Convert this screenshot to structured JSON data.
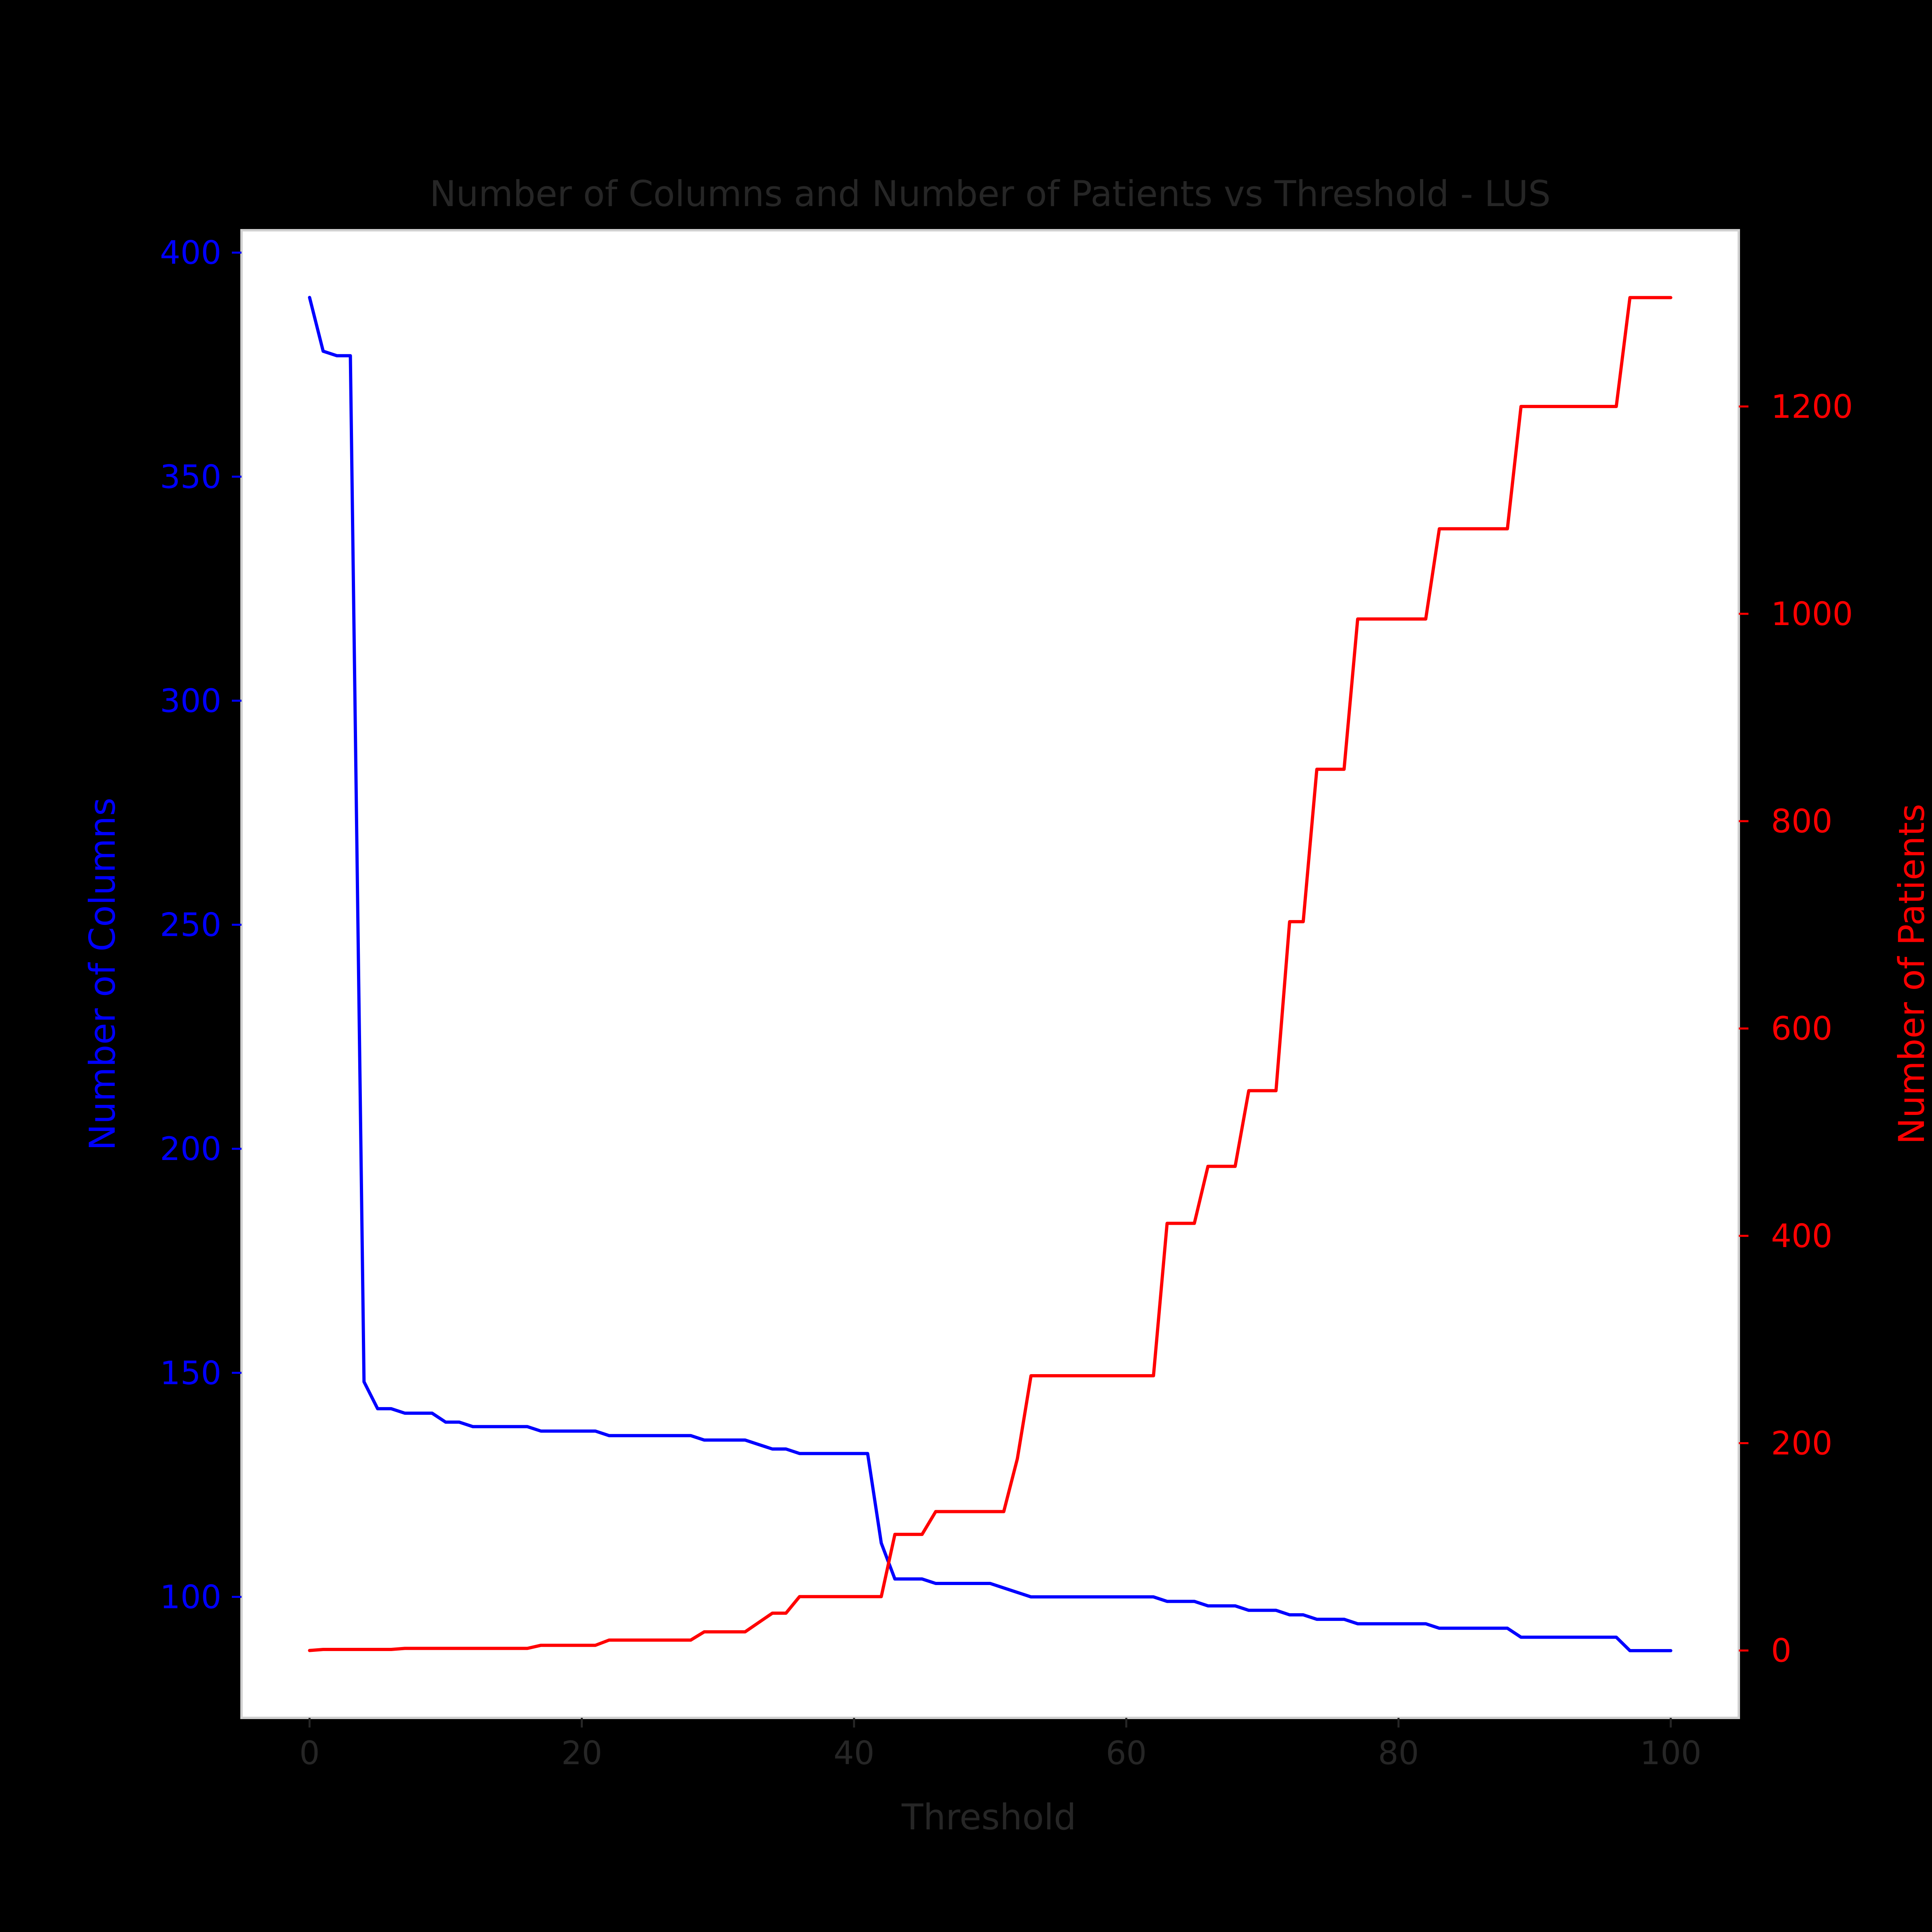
{
  "colors": {
    "background": "#000000",
    "plot_background": "#ffffff",
    "frame": "#d0d0d0",
    "text": "#262626",
    "columns": "#0000ff",
    "patients": "#ff0000"
  },
  "chart_data": {
    "type": "line",
    "title": "Number of Columns and Number of Patients vs Threshold - LUS",
    "xlabel": "Threshold",
    "ylabel_left": "Number of Columns",
    "ylabel_right": "Number of Patients",
    "xlim": [
      -5,
      105
    ],
    "ylim_left": [
      73,
      405
    ],
    "ylim_right": [
      -65,
      1370
    ],
    "xticks": [
      0,
      20,
      40,
      60,
      80,
      100
    ],
    "yticks_left": [
      100,
      150,
      200,
      250,
      300,
      350,
      400
    ],
    "yticks_right": [
      0,
      200,
      400,
      600,
      800,
      1000,
      1200
    ],
    "grid": false,
    "x": [
      0,
      1,
      2,
      3,
      4,
      5,
      6,
      7,
      8,
      9,
      10,
      11,
      12,
      13,
      14,
      15,
      16,
      17,
      18,
      19,
      20,
      21,
      22,
      23,
      24,
      25,
      26,
      27,
      28,
      29,
      30,
      31,
      32,
      33,
      34,
      35,
      36,
      37,
      38,
      39,
      40,
      41,
      42,
      43,
      44,
      45,
      46,
      47,
      48,
      49,
      50,
      51,
      52,
      53,
      54,
      55,
      56,
      57,
      58,
      59,
      60,
      61,
      62,
      63,
      64,
      65,
      66,
      67,
      68,
      69,
      70,
      71,
      72,
      73,
      74,
      75,
      76,
      77,
      78,
      79,
      80,
      81,
      82,
      83,
      84,
      85,
      86,
      87,
      88,
      89,
      90,
      91,
      92,
      93,
      94,
      95,
      96,
      97,
      98,
      99,
      100
    ],
    "series": [
      {
        "name": "Number of Columns",
        "axis": "left",
        "values": [
          390,
          378,
          377,
          377,
          148,
          142,
          142,
          141,
          141,
          141,
          139,
          139,
          138,
          138,
          138,
          138,
          138,
          137,
          137,
          137,
          137,
          137,
          136,
          136,
          136,
          136,
          136,
          136,
          136,
          135,
          135,
          135,
          135,
          134,
          133,
          133,
          132,
          132,
          132,
          132,
          132,
          132,
          112,
          104,
          104,
          104,
          103,
          103,
          103,
          103,
          103,
          102,
          101,
          100,
          100,
          100,
          100,
          100,
          100,
          100,
          100,
          100,
          100,
          99,
          99,
          99,
          98,
          98,
          98,
          97,
          97,
          97,
          96,
          96,
          95,
          95,
          95,
          94,
          94,
          94,
          94,
          94,
          94,
          93,
          93,
          93,
          93,
          93,
          93,
          91,
          91,
          91,
          91,
          91,
          91,
          91,
          91,
          88,
          88,
          88,
          88
        ]
      },
      {
        "name": "Number of Patients",
        "axis": "right",
        "values": [
          0,
          1,
          1,
          1,
          1,
          1,
          1,
          2,
          2,
          2,
          2,
          2,
          2,
          2,
          2,
          2,
          2,
          5,
          5,
          5,
          5,
          5,
          10,
          10,
          10,
          10,
          10,
          10,
          10,
          18,
          18,
          18,
          18,
          27,
          36,
          36,
          52,
          52,
          52,
          52,
          52,
          52,
          52,
          112,
          112,
          112,
          134,
          134,
          134,
          134,
          134,
          134,
          185,
          265,
          265,
          265,
          265,
          265,
          265,
          265,
          265,
          265,
          265,
          412,
          412,
          412,
          467,
          467,
          467,
          540,
          540,
          540,
          703,
          703,
          850,
          850,
          850,
          995,
          995,
          995,
          995,
          995,
          995,
          1082,
          1082,
          1082,
          1082,
          1082,
          1082,
          1200,
          1200,
          1200,
          1200,
          1200,
          1200,
          1200,
          1200,
          1305,
          1305,
          1305,
          1305
        ]
      }
    ]
  }
}
